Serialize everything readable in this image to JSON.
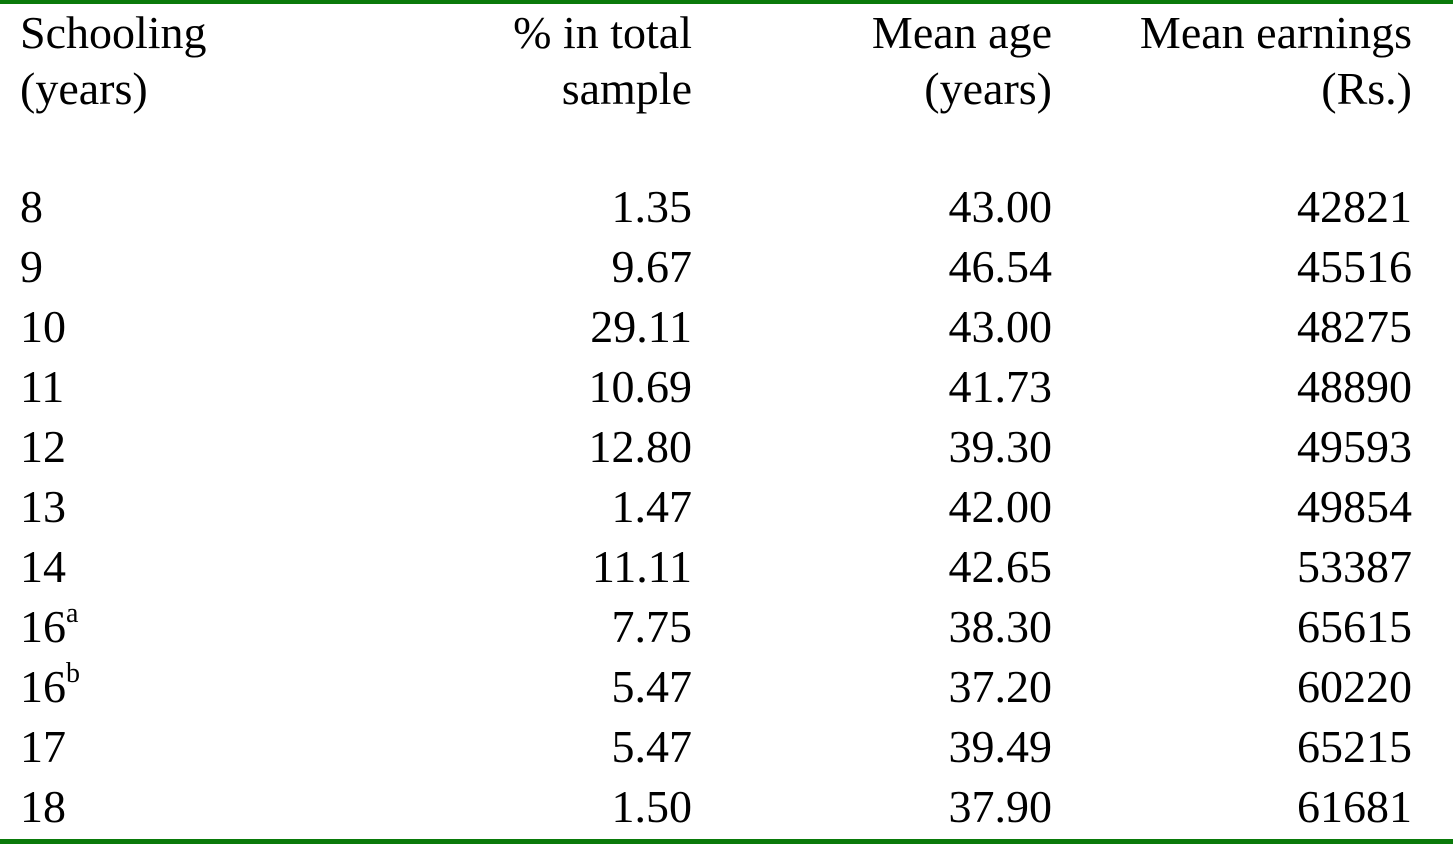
{
  "table": {
    "header": [
      [
        "Schooling",
        "(years)"
      ],
      [
        "% in total",
        "sample"
      ],
      [
        "Mean age",
        "(years)"
      ],
      [
        "Mean earnings",
        "(Rs.)"
      ]
    ],
    "rows": [
      [
        {
          "text": "8"
        },
        "1.35",
        "43.00",
        "42821"
      ],
      [
        {
          "text": "9"
        },
        "9.67",
        "46.54",
        "45516"
      ],
      [
        {
          "text": "10"
        },
        "29.11",
        "43.00",
        "48275"
      ],
      [
        {
          "text": "11"
        },
        "10.69",
        "41.73",
        "48890"
      ],
      [
        {
          "text": "12"
        },
        "12.80",
        "39.30",
        "49593"
      ],
      [
        {
          "text": "13"
        },
        "1.47",
        "42.00",
        "49854"
      ],
      [
        {
          "text": "14"
        },
        "11.11",
        "42.65",
        "53387"
      ],
      [
        {
          "text": "16",
          "sup": "a"
        },
        "7.75",
        "38.30",
        "65615"
      ],
      [
        {
          "text": "16",
          "sup": "b"
        },
        "5.47",
        "37.20",
        "60220"
      ],
      [
        {
          "text": "17"
        },
        "5.47",
        "39.49",
        "65215"
      ],
      [
        {
          "text": "18"
        },
        "1.50",
        "37.90",
        "61681"
      ]
    ]
  }
}
